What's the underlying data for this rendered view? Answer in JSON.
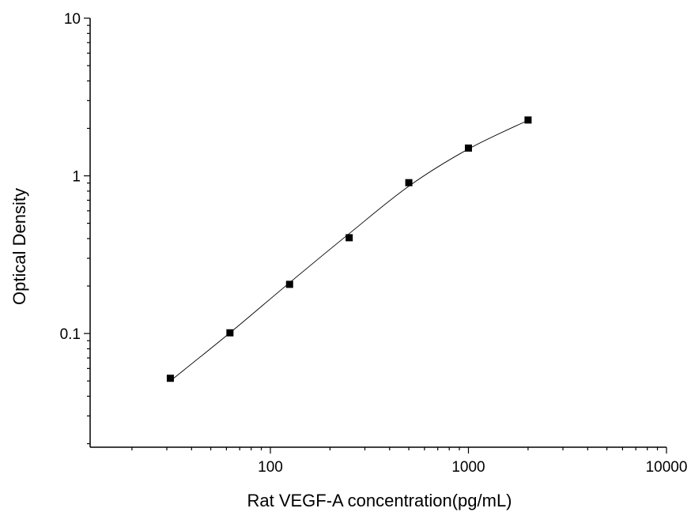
{
  "chart_data": {
    "type": "scatter",
    "title": "",
    "xlabel": "Rat VEGF-A concentration(pg/mL)",
    "ylabel": "Optical Density",
    "x_scale": "log",
    "y_scale": "log",
    "xlim": [
      12.3,
      10000
    ],
    "ylim": [
      0.019,
      10
    ],
    "x_ticks": [
      100,
      1000,
      10000
    ],
    "x_tick_labels": [
      "100",
      "1000",
      "10000"
    ],
    "y_ticks": [
      0.1,
      1,
      10
    ],
    "y_tick_labels": [
      "0.1",
      "1",
      "10"
    ],
    "grid": false,
    "series": [
      {
        "marker": "square",
        "color": "#000000",
        "x": [
          31.25,
          62.5,
          125,
          250,
          500,
          1000,
          2000
        ],
        "y": [
          0.052,
          0.101,
          0.205,
          0.405,
          0.905,
          1.5,
          2.26
        ]
      }
    ],
    "fit_curve": {
      "color": "#000000",
      "x": [
        31.25,
        62.5,
        125,
        250,
        500,
        1000,
        2000
      ],
      "y": [
        0.05,
        0.101,
        0.21,
        0.43,
        0.86,
        1.48,
        2.25
      ]
    }
  }
}
